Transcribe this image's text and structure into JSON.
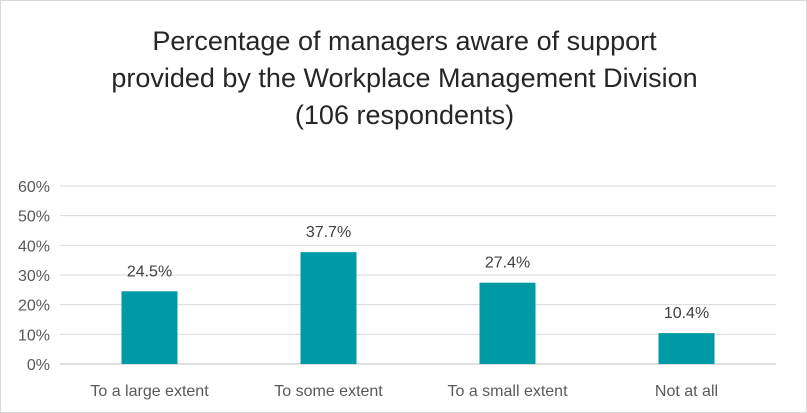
{
  "chart_data": {
    "type": "bar",
    "title_lines": [
      "Percentage of managers aware of support",
      "provided by the Workplace Management Division",
      "(106 respondents)"
    ],
    "categories": [
      "To a large extent",
      "To some extent",
      "To a small extent",
      "Not at all"
    ],
    "values": [
      24.5,
      37.7,
      27.4,
      10.4
    ],
    "data_labels": [
      "24.5%",
      "37.7%",
      "27.4%",
      "10.4%"
    ],
    "y_ticks": [
      "0%",
      "10%",
      "20%",
      "30%",
      "40%",
      "50%",
      "60%"
    ],
    "ylim": [
      0,
      60
    ],
    "grid": true,
    "legend": "none",
    "bar_color": "#009aa6"
  }
}
